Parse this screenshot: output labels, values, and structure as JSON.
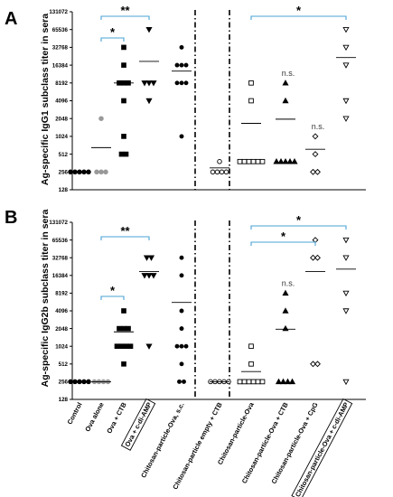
{
  "chart_data": [
    {
      "type": "scatter",
      "panel": "A",
      "ylabel": "Ag-specific IgG1 subclass titer in sera",
      "yscale": "log2",
      "ylim": [
        128,
        131072
      ],
      "yticks": [
        "128",
        "256",
        "512",
        "1024",
        "2048",
        "4096",
        "8192",
        "16384",
        "32768",
        "65536",
        "131072"
      ],
      "series": [
        {
          "group": 0,
          "marker": "circle-filled",
          "values": [
            256,
            256,
            256,
            256,
            256
          ],
          "mean": 256
        },
        {
          "group": 1,
          "marker": "circle-gray",
          "values": [
            256,
            256,
            256,
            2048
          ],
          "mean": 660
        },
        {
          "group": 2,
          "marker": "square-filled",
          "values": [
            32768,
            16384,
            8192,
            8192,
            8192,
            4096,
            1024,
            512,
            512
          ],
          "mean": 8192
        },
        {
          "group": 3,
          "marker": "tri-down-filled",
          "values": [
            65536,
            8192,
            8192,
            8192,
            4096
          ],
          "mean": 19000
        },
        {
          "group": 4,
          "marker": "circle-small",
          "values": [
            32768,
            16384,
            16384,
            16384,
            8192,
            8192,
            8192,
            1024
          ],
          "mean": 13000
        },
        {
          "group": 5,
          "marker": "circle-open",
          "values": [
            384,
            256,
            256,
            256,
            256
          ],
          "mean": 300
        },
        {
          "group": 6,
          "marker": "square-open",
          "values": [
            8192,
            4096,
            384,
            384,
            384,
            384,
            384,
            384
          ],
          "mean": 1700
        },
        {
          "group": 7,
          "marker": "tri-up-filled",
          "values": [
            8192,
            4096,
            384,
            384,
            384,
            384,
            384
          ],
          "mean": 2000
        },
        {
          "group": 8,
          "marker": "diamond-open",
          "values": [
            1024,
            512,
            256,
            256
          ],
          "mean": 620
        },
        {
          "group": 9,
          "marker": "tri-down-open",
          "values": [
            65536,
            32768,
            16384,
            4096,
            2048
          ],
          "mean": 22000
        }
      ],
      "brackets": [
        {
          "from": 1,
          "to": 2,
          "label": "*"
        },
        {
          "from": 1,
          "to": 3,
          "label": "**"
        },
        {
          "from": 6,
          "to": 9,
          "label": "*"
        }
      ],
      "annotations": [
        {
          "group": 7,
          "label": "n.s."
        },
        {
          "group": 8,
          "label": "n.s."
        }
      ]
    },
    {
      "type": "scatter",
      "panel": "B",
      "ylabel": "Ag-specific IgG2b subclass titer in sera",
      "yscale": "log2",
      "ylim": [
        128,
        131072
      ],
      "yticks": [
        "128",
        "256",
        "512",
        "1024",
        "2048",
        "4096",
        "8192",
        "16384",
        "32768",
        "65536",
        "131072"
      ],
      "series": [
        {
          "group": 0,
          "marker": "circle-filled",
          "values": [
            256,
            256,
            256,
            256,
            256
          ],
          "mean": 256
        },
        {
          "group": 1,
          "marker": "circle-gray",
          "values": [
            256,
            256,
            256,
            256
          ],
          "mean": 256
        },
        {
          "group": 2,
          "marker": "square-filled",
          "values": [
            4096,
            2048,
            2048,
            2048,
            1024,
            1024,
            1024,
            1024,
            512
          ],
          "mean": 1800
        },
        {
          "group": 3,
          "marker": "tri-down-filled",
          "values": [
            32768,
            32768,
            16384,
            16384,
            16384,
            1024
          ],
          "mean": 19000
        },
        {
          "group": 4,
          "marker": "circle-small",
          "values": [
            32768,
            16384,
            4096,
            2048,
            1024,
            1024,
            1024,
            512,
            256,
            256
          ],
          "mean": 5700
        },
        {
          "group": 5,
          "marker": "circle-open",
          "values": [
            256,
            256,
            256,
            256,
            256
          ],
          "mean": 256
        },
        {
          "group": 6,
          "marker": "square-open",
          "values": [
            1024,
            512,
            256,
            256,
            256,
            256,
            256,
            256
          ],
          "mean": 380
        },
        {
          "group": 7,
          "marker": "tri-up-filled",
          "values": [
            8192,
            4096,
            2048,
            256,
            256,
            256,
            256
          ],
          "mean": 2000
        },
        {
          "group": 8,
          "marker": "diamond-open",
          "values": [
            65536,
            32768,
            32768,
            512,
            512
          ],
          "mean": 19000
        },
        {
          "group": 9,
          "marker": "tri-down-open",
          "values": [
            65536,
            32768,
            8192,
            4096,
            256
          ],
          "mean": 21000
        }
      ],
      "brackets": [
        {
          "from": 1,
          "to": 2,
          "label": "*"
        },
        {
          "from": 1,
          "to": 3,
          "label": "**"
        },
        {
          "from": 6,
          "to": 8,
          "label": "*"
        },
        {
          "from": 6,
          "to": 9,
          "label": "*"
        }
      ],
      "annotations": [
        {
          "group": 7,
          "label": "n.s."
        }
      ]
    }
  ],
  "x_categories": [
    "Control",
    "Ova alone",
    "Ova + CTB",
    "Ova + c-di-AMP",
    "Chitosan-particle-Ova, s.c.",
    "Chitosan-particle empty + CTB",
    "Chitosan-particle-Ova",
    "Chitosan-particle-Ova + CTB",
    "Chitosan-particle-Ova + CpG",
    "Chitosan-particle-Ova + c-di-AMP"
  ],
  "boxed_categories": [
    3,
    9
  ],
  "colors": {
    "bracket": "#4aa3d6",
    "marker": "#000000",
    "gray_marker": "#999999",
    "mean_line": "#000000"
  }
}
